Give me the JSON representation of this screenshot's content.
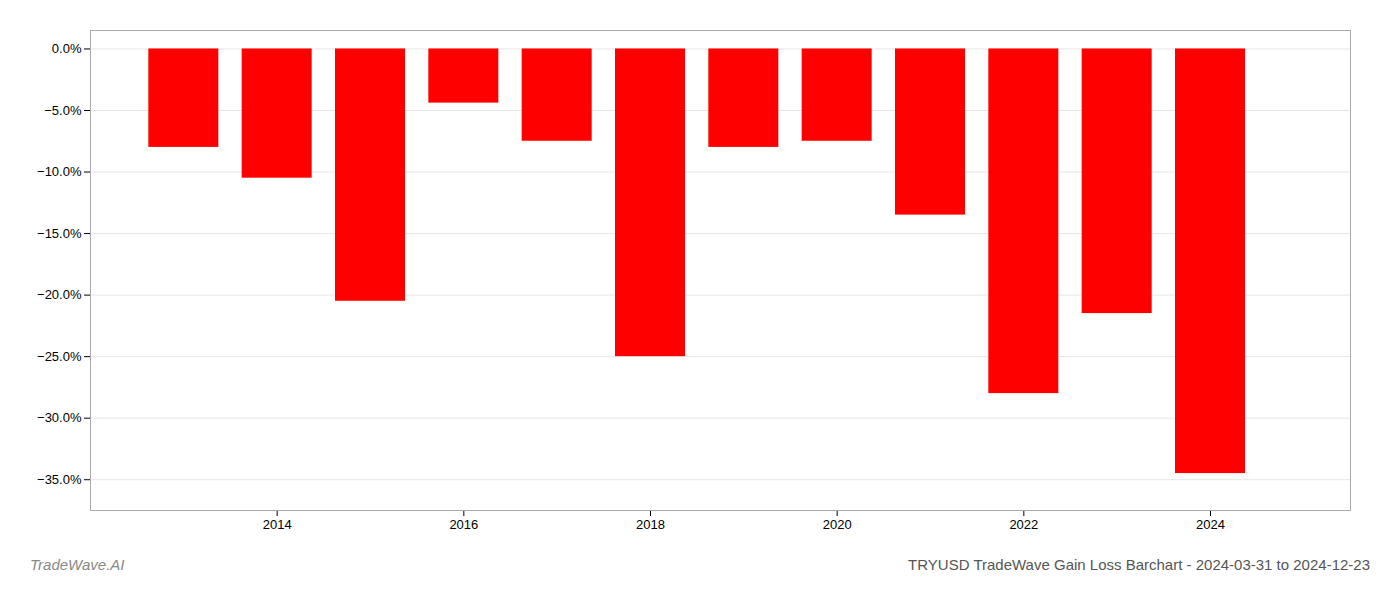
{
  "chart_data": {
    "type": "bar",
    "title": "TRYUSD TradeWave Gain Loss Barchart - 2024-03-31 to 2024-12-23",
    "annotations": [
      "TradeWave.AI"
    ],
    "x": [
      2013,
      2014,
      2015,
      2016,
      2017,
      2018,
      2019,
      2020,
      2021,
      2022,
      2023,
      2024
    ],
    "values": [
      -0.08,
      -0.105,
      -0.205,
      -0.044,
      -0.075,
      -0.25,
      -0.08,
      -0.075,
      -0.135,
      -0.28,
      -0.215,
      -0.345
    ],
    "color": "#ff0000",
    "xlim": [
      2012,
      2025.5
    ],
    "xticks": [
      2014,
      2016,
      2018,
      2020,
      2022,
      2024
    ],
    "ylim": [
      -0.375,
      0.015
    ],
    "yticks": [
      {
        "value": 0.0,
        "label": "0.0%"
      },
      {
        "value": -0.05,
        "label": "−5.0%"
      },
      {
        "value": -0.1,
        "label": "−10.0%"
      },
      {
        "value": -0.15,
        "label": "−15.0%"
      },
      {
        "value": -0.2,
        "label": "−20.0%"
      },
      {
        "value": -0.25,
        "label": "−25.0%"
      },
      {
        "value": -0.3,
        "label": "−30.0%"
      },
      {
        "value": -0.35,
        "label": "−35.0%"
      }
    ],
    "grid": true
  }
}
